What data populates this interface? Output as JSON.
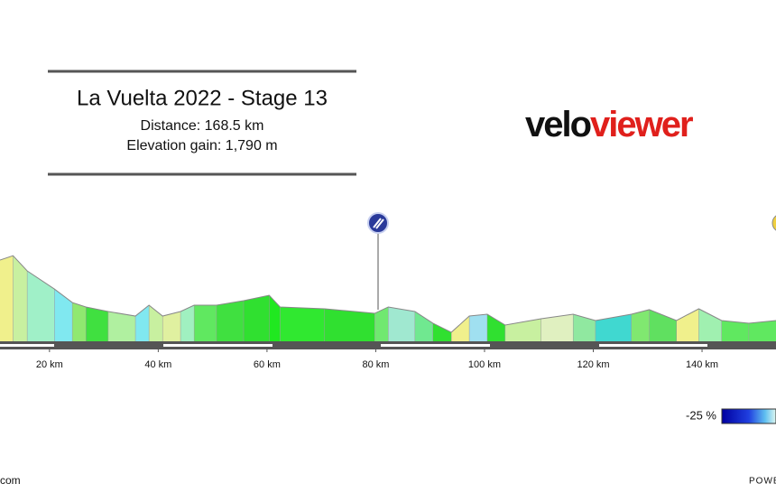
{
  "header": {
    "title": "La Vuelta 2022 - Stage 13",
    "distance": "Distance: 168.5 km",
    "elevation_gain": "Elevation gain: 1,790 m"
  },
  "logo": {
    "part1": "velo",
    "part2": "viewer"
  },
  "chart_data": {
    "type": "elevation",
    "x": [
      10.9,
      13.3,
      15.9,
      20.9,
      24.2,
      26.7,
      30.8,
      35.8,
      38.3,
      40.8,
      44.1,
      46.6,
      50.7,
      55.7,
      60.4,
      62.4,
      70.6,
      79.8,
      82.3,
      87.2,
      90.5,
      93.9,
      97.2,
      100.5,
      103.8,
      110.4,
      116.3,
      120.4,
      127.0,
      130.3,
      135.3,
      139.4,
      143.6,
      148.6,
      153.6
    ],
    "values": [
      750,
      790,
      650,
      483,
      358,
      317,
      275,
      233,
      333,
      233,
      275,
      333,
      333,
      375,
      425,
      317,
      300,
      258,
      317,
      275,
      167,
      83,
      233,
      250,
      150,
      208,
      250,
      192,
      250,
      292,
      192,
      300,
      192,
      167,
      192
    ],
    "segment_colors": [
      "#f0f08c",
      "#c8f0a0",
      "#a0f0c8",
      "#80e8f0",
      "#90e870",
      "#40e040",
      "#b0f0a0",
      "#80e8f0",
      "#c8f0a0",
      "#e0f0a0",
      "#a0f0c0",
      "#60e860",
      "#40e040",
      "#30e030",
      "#20e820",
      "#30e830",
      "#30e030",
      "#70e870",
      "#a0e8d0",
      "#70e890",
      "#30e030",
      "#f0f08c",
      "#a0e0f0",
      "#30e030",
      "#c8f0a0",
      "#e0f0c0",
      "#90e8a0",
      "#40d8d0",
      "#80e870",
      "#60e060",
      "#f0f08c",
      "#a0f0b0",
      "#60e860",
      "#60e860"
    ],
    "xlim": [
      10.9,
      153.6
    ],
    "ylim": [
      0,
      800
    ],
    "xticks": [
      {
        "value": 20,
        "label": "20 km"
      },
      {
        "value": 40,
        "label": "40 km"
      },
      {
        "value": 60,
        "label": "60 km"
      },
      {
        "value": 80,
        "label": "80 km"
      },
      {
        "value": 100,
        "label": "100 km"
      },
      {
        "value": 120,
        "label": "120 km"
      },
      {
        "value": 140,
        "label": "140 km"
      }
    ]
  },
  "legend": {
    "min_label": "-25 %"
  },
  "footer": {
    "left": "com",
    "right": "POWE"
  }
}
